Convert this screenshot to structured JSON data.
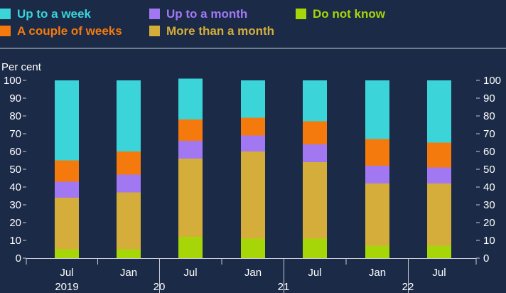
{
  "chart_data": {
    "type": "bar",
    "stacked": true,
    "unit_label": "Per cent",
    "ylim": [
      0,
      100
    ],
    "yticks": [
      0,
      10,
      20,
      30,
      40,
      50,
      60,
      70,
      80,
      90,
      100
    ],
    "x_month_labels": [
      "Jul",
      "Jan",
      "Jul",
      "Jan",
      "Jul",
      "Jan",
      "Jul"
    ],
    "x_year_labels": [
      "2019",
      "20",
      "21",
      "22"
    ],
    "legend_position": "top",
    "series": [
      {
        "name": "Do not know",
        "color": "#a6d608",
        "values": [
          5,
          5,
          12,
          11,
          11,
          7,
          7
        ]
      },
      {
        "name": "More than a month",
        "color": "#d4ad3a",
        "values": [
          29,
          32,
          44,
          49,
          43,
          35,
          35
        ]
      },
      {
        "name": "Up to a month",
        "color": "#a178f2",
        "values": [
          9,
          10,
          10,
          9,
          10,
          10,
          9
        ]
      },
      {
        "name": "A couple of weeks",
        "color": "#f57a0d",
        "values": [
          12,
          13,
          12,
          10,
          13,
          15,
          14
        ]
      },
      {
        "name": "Up to a week",
        "color": "#3ad4d9",
        "values": [
          45,
          40,
          23,
          21,
          23,
          33,
          35
        ]
      }
    ],
    "legend_order": [
      "Up to a week",
      "Up to a month",
      "Do not know",
      "A couple of weeks",
      "More than a month"
    ]
  },
  "colors": {
    "background": "#1b2a47",
    "axis": "#c9ced8",
    "text": "#ffffff"
  }
}
